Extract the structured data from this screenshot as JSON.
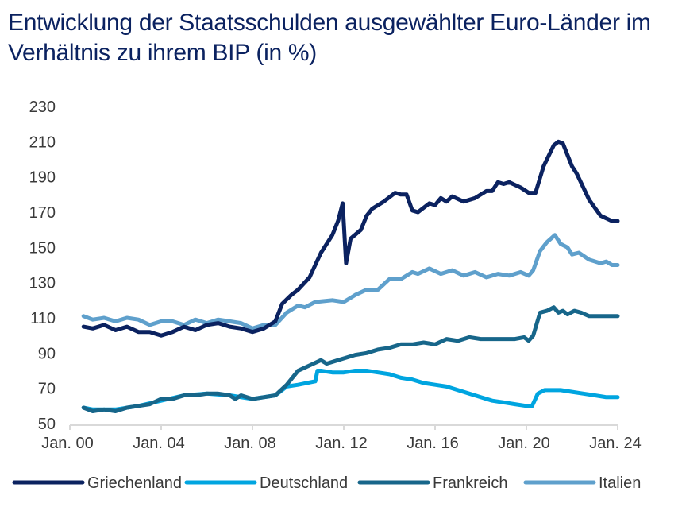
{
  "chart_data": {
    "type": "line",
    "title": "Entwicklung der Staatsschulden ausgewählter Euro-Länder im Verhältnis zu ihrem BIP (in %)",
    "xlabel": "",
    "ylabel": "",
    "ylim": [
      50,
      230
    ],
    "yticks": [
      230,
      210,
      190,
      170,
      150,
      130,
      110,
      90,
      70,
      50
    ],
    "xlim": [
      2000,
      2024
    ],
    "xticks": [
      {
        "year": 2000,
        "label": "Jan. 00"
      },
      {
        "year": 2004,
        "label": "Jan. 04"
      },
      {
        "year": 2008,
        "label": "Jan. 08"
      },
      {
        "year": 2012,
        "label": "Jan. 12"
      },
      {
        "year": 2016,
        "label": "Jan. 16"
      },
      {
        "year": 2020,
        "label": "Jan. 20"
      },
      {
        "year": 2024,
        "label": "Jan. 24"
      }
    ],
    "grid": false,
    "legend_position": "bottom",
    "series": [
      {
        "name": "Griechenland",
        "color": "#0b2260",
        "points": [
          [
            2000.6,
            105
          ],
          [
            2001,
            104
          ],
          [
            2001.5,
            106
          ],
          [
            2002,
            103
          ],
          [
            2002.5,
            105
          ],
          [
            2003,
            102
          ],
          [
            2003.5,
            102
          ],
          [
            2004,
            100
          ],
          [
            2004.5,
            102
          ],
          [
            2005,
            105
          ],
          [
            2005.5,
            103
          ],
          [
            2006,
            106
          ],
          [
            2006.5,
            107
          ],
          [
            2007,
            105
          ],
          [
            2007.5,
            104
          ],
          [
            2008,
            102
          ],
          [
            2008.5,
            104
          ],
          [
            2009,
            108
          ],
          [
            2009.3,
            118
          ],
          [
            2009.7,
            123
          ],
          [
            2010,
            126
          ],
          [
            2010.5,
            133
          ],
          [
            2011,
            147
          ],
          [
            2011.5,
            157
          ],
          [
            2011.75,
            165
          ],
          [
            2011.95,
            175
          ],
          [
            2012.1,
            141
          ],
          [
            2012.3,
            155
          ],
          [
            2012.75,
            160
          ],
          [
            2013,
            168
          ],
          [
            2013.25,
            172
          ],
          [
            2013.75,
            176
          ],
          [
            2014.25,
            181
          ],
          [
            2014.5,
            180
          ],
          [
            2014.75,
            180
          ],
          [
            2015,
            171
          ],
          [
            2015.25,
            170
          ],
          [
            2015.75,
            175
          ],
          [
            2016,
            174
          ],
          [
            2016.25,
            178
          ],
          [
            2016.5,
            176
          ],
          [
            2016.75,
            179
          ],
          [
            2017.25,
            176
          ],
          [
            2017.75,
            178
          ],
          [
            2018.25,
            182
          ],
          [
            2018.5,
            182
          ],
          [
            2018.75,
            187
          ],
          [
            2019,
            186
          ],
          [
            2019.25,
            187
          ],
          [
            2019.75,
            184
          ],
          [
            2020.1,
            181
          ],
          [
            2020.4,
            181
          ],
          [
            2020.75,
            196
          ],
          [
            2021.2,
            208
          ],
          [
            2021.4,
            210
          ],
          [
            2021.6,
            209
          ],
          [
            2022,
            196
          ],
          [
            2022.2,
            192
          ],
          [
            2022.75,
            177
          ],
          [
            2023.25,
            168
          ],
          [
            2023.75,
            165
          ],
          [
            2024,
            165
          ]
        ]
      },
      {
        "name": "Deutschland",
        "color": "#00a5e0",
        "points": [
          [
            2000.6,
            59
          ],
          [
            2001,
            58
          ],
          [
            2002,
            58
          ],
          [
            2003,
            60
          ],
          [
            2004,
            63
          ],
          [
            2005,
            66
          ],
          [
            2006,
            67
          ],
          [
            2007,
            66
          ],
          [
            2008,
            64
          ],
          [
            2009,
            66
          ],
          [
            2009.5,
            71
          ],
          [
            2010,
            72
          ],
          [
            2010.75,
            74
          ],
          [
            2010.85,
            80
          ],
          [
            2011,
            80
          ],
          [
            2011.5,
            79
          ],
          [
            2012,
            79
          ],
          [
            2012.5,
            80
          ],
          [
            2013,
            80
          ],
          [
            2013.5,
            79
          ],
          [
            2014,
            78
          ],
          [
            2014.5,
            76
          ],
          [
            2015,
            75
          ],
          [
            2015.5,
            73
          ],
          [
            2016,
            72
          ],
          [
            2016.5,
            71
          ],
          [
            2017,
            69
          ],
          [
            2017.5,
            67
          ],
          [
            2018,
            65
          ],
          [
            2018.5,
            63
          ],
          [
            2019,
            62
          ],
          [
            2019.5,
            61
          ],
          [
            2020,
            60
          ],
          [
            2020.25,
            60
          ],
          [
            2020.5,
            67
          ],
          [
            2020.8,
            69
          ],
          [
            2021.5,
            69
          ],
          [
            2022,
            68
          ],
          [
            2022.5,
            67
          ],
          [
            2023,
            66
          ],
          [
            2023.5,
            65
          ],
          [
            2024,
            65
          ]
        ]
      },
      {
        "name": "Frankreich",
        "color": "#17668a",
        "points": [
          [
            2000.6,
            59
          ],
          [
            2001,
            57
          ],
          [
            2001.5,
            58
          ],
          [
            2002,
            57
          ],
          [
            2002.5,
            59
          ],
          [
            2003,
            60
          ],
          [
            2003.5,
            61
          ],
          [
            2004,
            64
          ],
          [
            2004.5,
            64
          ],
          [
            2005,
            66
          ],
          [
            2005.5,
            66
          ],
          [
            2006,
            67
          ],
          [
            2006.5,
            67
          ],
          [
            2007,
            66
          ],
          [
            2007.25,
            64
          ],
          [
            2007.5,
            66
          ],
          [
            2008,
            64
          ],
          [
            2008.5,
            65
          ],
          [
            2009,
            66
          ],
          [
            2009.5,
            72
          ],
          [
            2010,
            80
          ],
          [
            2010.5,
            83
          ],
          [
            2011,
            86
          ],
          [
            2011.25,
            84
          ],
          [
            2011.75,
            86
          ],
          [
            2012,
            87
          ],
          [
            2012.5,
            89
          ],
          [
            2013,
            90
          ],
          [
            2013.5,
            92
          ],
          [
            2014,
            93
          ],
          [
            2014.5,
            95
          ],
          [
            2015,
            95
          ],
          [
            2015.5,
            96
          ],
          [
            2016,
            95
          ],
          [
            2016.5,
            98
          ],
          [
            2017,
            97
          ],
          [
            2017.5,
            99
          ],
          [
            2018,
            98
          ],
          [
            2018.5,
            98
          ],
          [
            2019,
            98
          ],
          [
            2019.5,
            98
          ],
          [
            2019.9,
            99
          ],
          [
            2020.1,
            97
          ],
          [
            2020.3,
            100
          ],
          [
            2020.6,
            113
          ],
          [
            2020.9,
            114
          ],
          [
            2021.2,
            116
          ],
          [
            2021.4,
            113
          ],
          [
            2021.6,
            114
          ],
          [
            2021.8,
            112
          ],
          [
            2022.1,
            114
          ],
          [
            2022.4,
            113
          ],
          [
            2022.75,
            111
          ],
          [
            2023.25,
            111
          ],
          [
            2024,
            111
          ]
        ]
      },
      {
        "name": "Italien",
        "color": "#5fa0cc",
        "points": [
          [
            2000.6,
            111
          ],
          [
            2001,
            109
          ],
          [
            2001.5,
            110
          ],
          [
            2002,
            108
          ],
          [
            2002.5,
            110
          ],
          [
            2003,
            109
          ],
          [
            2003.5,
            106
          ],
          [
            2004,
            108
          ],
          [
            2004.5,
            108
          ],
          [
            2005,
            106
          ],
          [
            2005.5,
            109
          ],
          [
            2006,
            107
          ],
          [
            2006.5,
            109
          ],
          [
            2007,
            108
          ],
          [
            2007.5,
            107
          ],
          [
            2008,
            104
          ],
          [
            2008.5,
            106
          ],
          [
            2009,
            106
          ],
          [
            2009.5,
            113
          ],
          [
            2010,
            117
          ],
          [
            2010.3,
            116
          ],
          [
            2010.75,
            119
          ],
          [
            2011.5,
            120
          ],
          [
            2012,
            119
          ],
          [
            2012.5,
            123
          ],
          [
            2013,
            126
          ],
          [
            2013.5,
            126
          ],
          [
            2014,
            132
          ],
          [
            2014.5,
            132
          ],
          [
            2015,
            136
          ],
          [
            2015.25,
            135
          ],
          [
            2015.75,
            138
          ],
          [
            2016.25,
            135
          ],
          [
            2016.75,
            137
          ],
          [
            2017.25,
            134
          ],
          [
            2017.75,
            136
          ],
          [
            2018.25,
            133
          ],
          [
            2018.75,
            135
          ],
          [
            2019.25,
            134
          ],
          [
            2019.75,
            136
          ],
          [
            2020.1,
            134
          ],
          [
            2020.3,
            137
          ],
          [
            2020.6,
            148
          ],
          [
            2020.9,
            153
          ],
          [
            2021.25,
            157
          ],
          [
            2021.5,
            152
          ],
          [
            2021.8,
            150
          ],
          [
            2022,
            146
          ],
          [
            2022.3,
            147
          ],
          [
            2022.75,
            143
          ],
          [
            2023.25,
            141
          ],
          [
            2023.5,
            142
          ],
          [
            2023.75,
            140
          ],
          [
            2024,
            140
          ]
        ]
      }
    ]
  }
}
